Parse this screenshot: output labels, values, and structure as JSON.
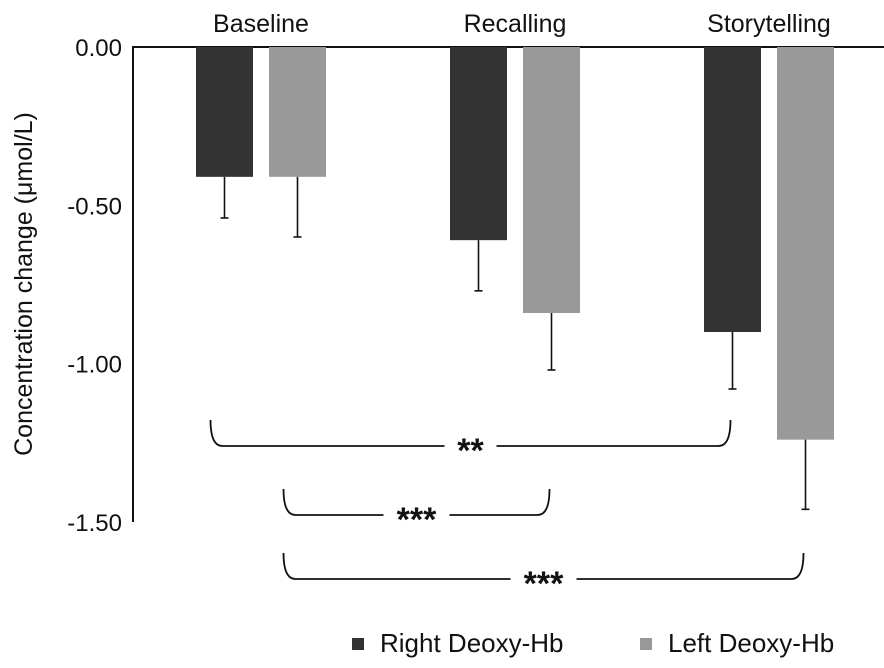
{
  "chart_data": {
    "type": "bar",
    "title": "",
    "xlabel": "",
    "ylabel": "Concentration change (μmol/L)",
    "categories": [
      "Baseline",
      "Recalling",
      "Storytelling"
    ],
    "series": [
      {
        "name": "Right Deoxy-Hb",
        "color": "#333333",
        "values": [
          -0.41,
          -0.61,
          -0.9
        ],
        "errors": [
          0.13,
          0.16,
          0.18
        ]
      },
      {
        "name": "Left Deoxy-Hb",
        "color": "#999999",
        "values": [
          -0.41,
          -0.84,
          -1.24
        ],
        "errors": [
          0.19,
          0.18,
          0.22
        ]
      }
    ],
    "ylim": [
      -1.5,
      0.0
    ],
    "yticks": [
      "0.00",
      "-0.50",
      "-1.00",
      "-1.50"
    ],
    "ytick_values": [
      0.0,
      -0.5,
      -1.0,
      -1.5
    ],
    "grid": false,
    "legend_position": "bottom-right",
    "significance": [
      {
        "from_category": 0,
        "from_series": 0,
        "to_category": 2,
        "to_series": 0,
        "label": "**"
      },
      {
        "from_category": 0,
        "from_series": 1,
        "to_category": 1,
        "to_series": 1,
        "label": "***"
      },
      {
        "from_category": 0,
        "from_series": 1,
        "to_category": 2,
        "to_series": 1,
        "label": "***"
      }
    ]
  }
}
